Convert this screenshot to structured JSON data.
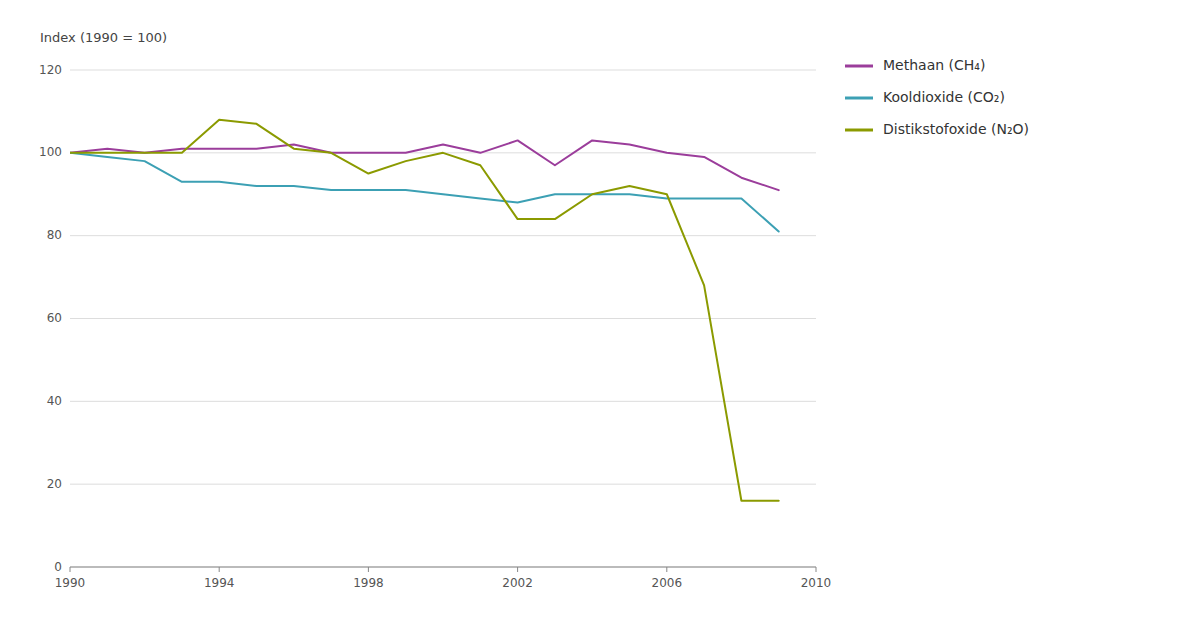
{
  "chart_data": {
    "type": "line",
    "ylabel": "Index (1990 = 100)",
    "x": [
      1990,
      1991,
      1992,
      1993,
      1994,
      1995,
      1996,
      1997,
      1998,
      1999,
      2000,
      2001,
      2002,
      2003,
      2004,
      2005,
      2006,
      2007,
      2008,
      2009
    ],
    "series": [
      {
        "name": "Methaan (CH₄)",
        "color": "#9b3d9b",
        "values": [
          100,
          101,
          100,
          101,
          101,
          101,
          102,
          100,
          100,
          100,
          102,
          100,
          103,
          97,
          103,
          102,
          100,
          99,
          94,
          91
        ]
      },
      {
        "name": "Kooldioxide (CO₂)",
        "color": "#3ca0b4",
        "values": [
          100,
          99,
          98,
          93,
          93,
          92,
          92,
          91,
          91,
          91,
          90,
          89,
          88,
          90,
          90,
          90,
          89,
          89,
          89,
          81
        ]
      },
      {
        "name": "Distikstofoxide (N₂O)",
        "color": "#8b9a00",
        "values": [
          100,
          100,
          100,
          100,
          108,
          107,
          101,
          100,
          95,
          98,
          100,
          97,
          84,
          84,
          90,
          92,
          90,
          68,
          16,
          16
        ]
      }
    ],
    "xlim": [
      1990,
      2010
    ],
    "xticks": [
      1990,
      1994,
      1998,
      2002,
      2006,
      2010
    ],
    "ylim": [
      0,
      120
    ],
    "yticks": [
      0,
      20,
      40,
      60,
      80,
      100,
      120
    ],
    "grid": true,
    "legend": "right"
  }
}
